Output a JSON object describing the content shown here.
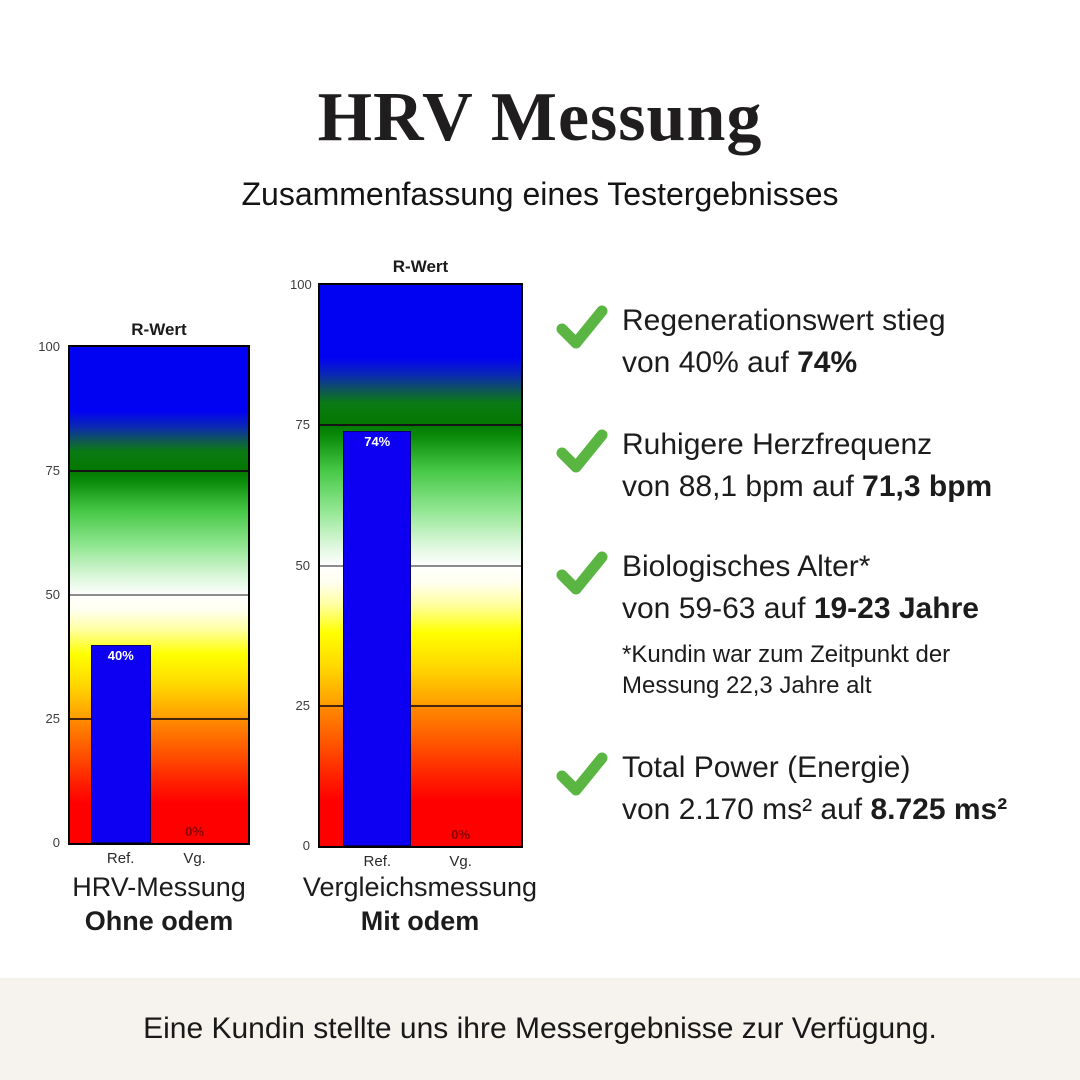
{
  "header": {
    "title": "HRV Messung",
    "subtitle": "Zusammenfassung eines Testergebnisses"
  },
  "chart_data": [
    {
      "type": "bar",
      "title": "R-Wert",
      "categories": [
        "Ref.",
        "Vg."
      ],
      "values": [
        40,
        0
      ],
      "bar_labels": [
        {
          "text": "40%",
          "color": "#ffffff"
        },
        {
          "text": "0%",
          "color": "#8b0000"
        }
      ],
      "ylim": [
        0,
        100
      ],
      "yticks": [
        100,
        75,
        50,
        25,
        0
      ],
      "gridlines": [
        {
          "value": 75,
          "color": "#141414"
        },
        {
          "value": 50,
          "color": "#8c8c8c"
        },
        {
          "value": 25,
          "color": "#46240a"
        }
      ],
      "bar_color": "#0d00f2",
      "bar_centers": [
        0.285,
        0.7
      ],
      "bar_width_frac": 0.34,
      "scale_gradient": [
        {
          "pos": 0,
          "color": "#0202f2"
        },
        {
          "pos": 13,
          "color": "#0202f2"
        },
        {
          "pos": 16,
          "color": "#0a28b4"
        },
        {
          "pos": 19,
          "color": "#0f5a50"
        },
        {
          "pos": 21,
          "color": "#0a7a14"
        },
        {
          "pos": 25,
          "color": "#047800"
        },
        {
          "pos": 27,
          "color": "#0a8c0a"
        },
        {
          "pos": 33,
          "color": "#46c846"
        },
        {
          "pos": 40,
          "color": "#90e690"
        },
        {
          "pos": 46,
          "color": "#d8f6d8"
        },
        {
          "pos": 50,
          "color": "#ffffff"
        },
        {
          "pos": 53,
          "color": "#fffff0"
        },
        {
          "pos": 57,
          "color": "#ffffa0"
        },
        {
          "pos": 62,
          "color": "#ffff00"
        },
        {
          "pos": 68,
          "color": "#ffd800"
        },
        {
          "pos": 74.5,
          "color": "#ffa000"
        },
        {
          "pos": 75.5,
          "color": "#ff8800"
        },
        {
          "pos": 82,
          "color": "#ff5200"
        },
        {
          "pos": 88,
          "color": "#ff1e00"
        },
        {
          "pos": 92,
          "color": "#ff0000"
        },
        {
          "pos": 100,
          "color": "#ff0000"
        }
      ],
      "caption_line1": "HRV-Messung",
      "caption_line2": "Ohne odem"
    },
    {
      "type": "bar",
      "title": "R-Wert",
      "categories": [
        "Ref.",
        "Vg."
      ],
      "values": [
        74,
        0
      ],
      "bar_labels": [
        {
          "text": "74%",
          "color": "#ffffff"
        },
        {
          "text": "0%",
          "color": "#8b0000"
        }
      ],
      "ylim": [
        0,
        100
      ],
      "yticks": [
        100,
        75,
        50,
        25,
        0
      ],
      "gridlines": [
        {
          "value": 75,
          "color": "#141414"
        },
        {
          "value": 50,
          "color": "#8c8c8c"
        },
        {
          "value": 25,
          "color": "#46240a"
        }
      ],
      "bar_color": "#0d00f2",
      "bar_centers": [
        0.285,
        0.7
      ],
      "bar_width_frac": 0.34,
      "scale_gradient": [
        {
          "pos": 0,
          "color": "#0202f2"
        },
        {
          "pos": 13,
          "color": "#0202f2"
        },
        {
          "pos": 16,
          "color": "#0a28b4"
        },
        {
          "pos": 19,
          "color": "#0f5a50"
        },
        {
          "pos": 21,
          "color": "#0a7a14"
        },
        {
          "pos": 25,
          "color": "#047800"
        },
        {
          "pos": 27,
          "color": "#0a8c0a"
        },
        {
          "pos": 33,
          "color": "#46c846"
        },
        {
          "pos": 40,
          "color": "#90e690"
        },
        {
          "pos": 46,
          "color": "#d8f6d8"
        },
        {
          "pos": 50,
          "color": "#ffffff"
        },
        {
          "pos": 53,
          "color": "#fffff0"
        },
        {
          "pos": 57,
          "color": "#ffffa0"
        },
        {
          "pos": 62,
          "color": "#ffff00"
        },
        {
          "pos": 68,
          "color": "#ffd800"
        },
        {
          "pos": 74.5,
          "color": "#ffa000"
        },
        {
          "pos": 75.5,
          "color": "#ff8800"
        },
        {
          "pos": 82,
          "color": "#ff5200"
        },
        {
          "pos": 88,
          "color": "#ff1e00"
        },
        {
          "pos": 92,
          "color": "#ff0000"
        },
        {
          "pos": 100,
          "color": "#ff0000"
        }
      ],
      "caption_line1": "Vergleichsmessung",
      "caption_line2": "Mit odem"
    }
  ],
  "bullets": [
    {
      "line1": "Regenerationswert stieg",
      "line2_prefix": "von 40% auf ",
      "line2_bold": "74%"
    },
    {
      "line1": "Ruhigere Herzfrequenz",
      "line2_prefix": "von 88,1 bpm auf ",
      "line2_bold": "71,3 bpm"
    },
    {
      "line1": "Biologisches Alter*",
      "line2_prefix": "von 59-63 auf ",
      "line2_bold": "19-23 Jahre",
      "footnote_line1": "*Kundin war zum Zeitpunkt der",
      "footnote_line2": "Messung 22,3 Jahre alt"
    },
    {
      "line1": "Total Power (Energie)",
      "line2_prefix": "von 2.170 ms² auf ",
      "line2_bold": "8.725 ms²"
    }
  ],
  "footer": {
    "text": "Eine Kundin stellte uns ihre Messergebnisse zur Verfügung."
  },
  "colors": {
    "check_green": "#5bb543",
    "footer_bg": "#f6f2ed",
    "text": "#1c1c1c"
  }
}
